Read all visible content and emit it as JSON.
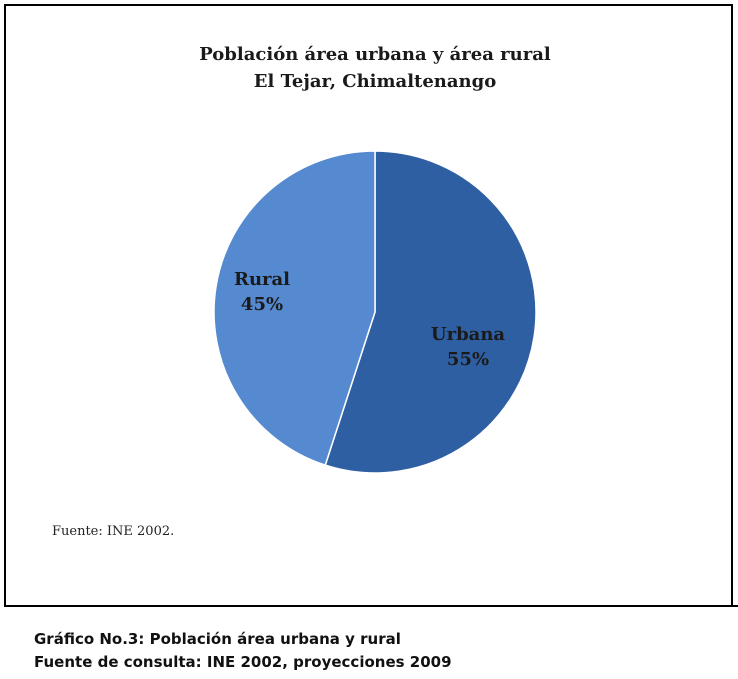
{
  "chart_data": {
    "type": "pie",
    "title": "Población área urbana y área rural",
    "subtitle": "El Tejar, Chimaltenango",
    "slices": [
      {
        "label": "Urbana",
        "value": 55,
        "value_label": "55%",
        "color": "#2e5fa3"
      },
      {
        "label": "Rural",
        "value": 45,
        "value_label": "45%",
        "color": "#5589d0"
      }
    ],
    "start": "12 o'clock",
    "direction": "clockwise",
    "legend": "none"
  },
  "source_note": "Fuente: INE 2002.",
  "caption": {
    "line1": "Gráfico No.3: Población área urbana y rural",
    "line2": "Fuente de consulta: INE 2002, proyecciones 2009"
  }
}
